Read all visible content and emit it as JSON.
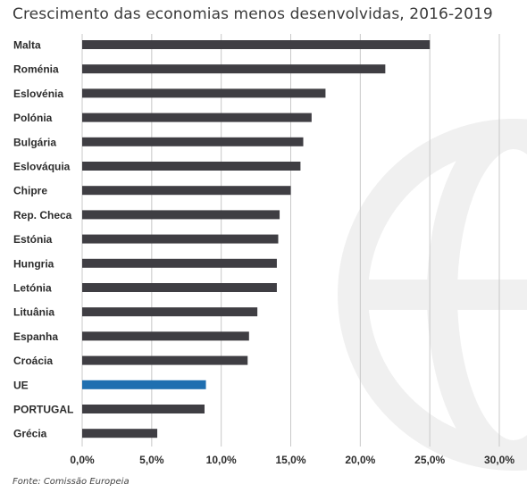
{
  "title": "Crescimento das economias menos desenvolvidas, 2016-2019",
  "source": "Fonte: Comissão Europeia",
  "colors": {
    "bar": "#3f3e43",
    "highlight": "#1f6fb0",
    "grid": "#c8c8c8",
    "watermark": "#f0f0f0"
  },
  "chart_data": {
    "type": "bar",
    "orientation": "horizontal",
    "title": "Crescimento das economias menos desenvolvidas, 2016-2019",
    "categories": [
      "Malta",
      "Roménia",
      "Eslovénia",
      "Polónia",
      "Bulgária",
      "Eslováquia",
      "Chipre",
      "Rep. Checa",
      "Estónia",
      "Hungria",
      "Letónia",
      "Lituânia",
      "Espanha",
      "Croácia",
      "UE",
      "PORTUGAL",
      "Grécia"
    ],
    "values": [
      25.0,
      21.8,
      17.5,
      16.5,
      15.9,
      15.7,
      15.0,
      14.2,
      14.1,
      14.0,
      14.0,
      12.6,
      12.0,
      11.9,
      8.9,
      8.8,
      5.4
    ],
    "highlight": [
      "UE"
    ],
    "xlim": [
      0,
      30
    ],
    "xticks": [
      0,
      5,
      10,
      15,
      20,
      25,
      30
    ],
    "xtick_labels": [
      "0,0%",
      "5,0%",
      "10,0%",
      "15,0%",
      "20,0%",
      "25,0%",
      "30,0%"
    ],
    "grid": "vertical",
    "legend": "none"
  }
}
